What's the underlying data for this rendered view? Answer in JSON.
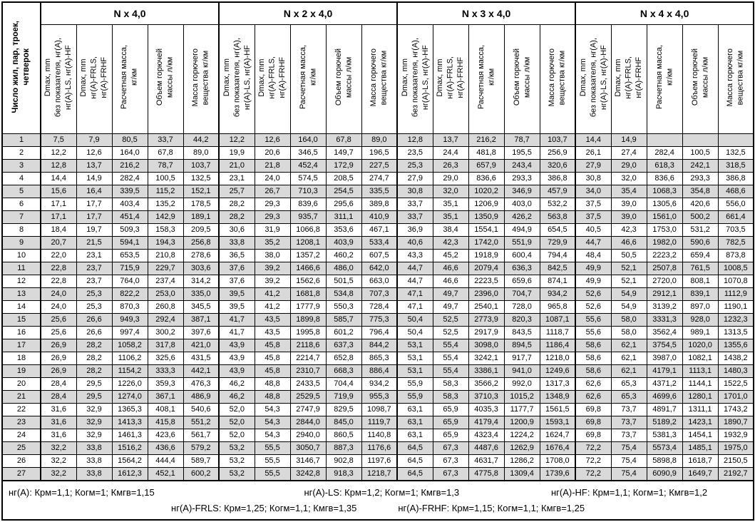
{
  "colors": {
    "row_shaded": "#d9d9d9",
    "border": "#000000",
    "background": "#ffffff"
  },
  "table": {
    "corner_header": "Число жил, пар, троек,\nчетверок",
    "groups": [
      {
        "label": "N x 4,0"
      },
      {
        "label": "N x 2 x 4,0"
      },
      {
        "label": "N x 3 x 4,0"
      },
      {
        "label": "N x 4 x 4,0"
      }
    ],
    "columns": [
      {
        "label": "Dmax, mm\nбез показателя, нг(A),\nнг(A)-LS, нг(A)-HF"
      },
      {
        "label": "Dmax, mm\nнг(A)-FRLS,\nнг(A)-FRHF"
      },
      {
        "label": "Расчетная масса,\nкг/км"
      },
      {
        "label": "Объем горючей\nмассы л/км"
      },
      {
        "label": "Масса горючего\nвещества кг/км"
      }
    ],
    "rows": [
      [
        "1",
        "7,5",
        "7,9",
        "80,5",
        "33,7",
        "44,2",
        "12,2",
        "12,6",
        "164,0",
        "67,8",
        "89,0",
        "12,8",
        "13,7",
        "216,2",
        "78,7",
        "103,7",
        "14,4",
        "14,9",
        "",
        "",
        ""
      ],
      [
        "2",
        "12,2",
        "12,6",
        "164,0",
        "67,8",
        "89,0",
        "19,9",
        "20,6",
        "346,5",
        "149,7",
        "196,5",
        "23,5",
        "24,4",
        "481,8",
        "195,5",
        "256,9",
        "26,1",
        "27,4",
        "282,4",
        "100,5",
        "132,5"
      ],
      [
        "3",
        "12,8",
        "13,7",
        "216,2",
        "78,7",
        "103,7",
        "21,0",
        "21,8",
        "452,4",
        "172,9",
        "227,5",
        "25,3",
        "26,3",
        "657,9",
        "243,4",
        "320,6",
        "27,9",
        "29,0",
        "618,3",
        "242,1",
        "318,5"
      ],
      [
        "4",
        "14,4",
        "14,9",
        "282,4",
        "100,5",
        "132,5",
        "23,1",
        "24,0",
        "574,5",
        "208,5",
        "274,7",
        "27,9",
        "29,0",
        "836,6",
        "293,3",
        "386,8",
        "30,8",
        "32,0",
        "836,6",
        "293,3",
        "386,8"
      ],
      [
        "5",
        "15,6",
        "16,4",
        "339,5",
        "115,2",
        "152,1",
        "25,7",
        "26,7",
        "710,3",
        "254,5",
        "335,5",
        "30,8",
        "32,0",
        "1020,2",
        "346,9",
        "457,9",
        "34,0",
        "35,4",
        "1068,3",
        "354,8",
        "468,6"
      ],
      [
        "6",
        "17,1",
        "17,7",
        "403,4",
        "135,2",
        "178,5",
        "28,2",
        "29,3",
        "839,6",
        "295,6",
        "389,8",
        "33,7",
        "35,1",
        "1206,9",
        "403,0",
        "532,2",
        "37,5",
        "39,0",
        "1305,6",
        "420,6",
        "556,0"
      ],
      [
        "7",
        "17,1",
        "17,7",
        "451,4",
        "142,9",
        "189,1",
        "28,2",
        "29,3",
        "935,7",
        "311,1",
        "410,9",
        "33,7",
        "35,1",
        "1350,9",
        "426,2",
        "563,8",
        "37,5",
        "39,0",
        "1561,0",
        "500,2",
        "661,4"
      ],
      [
        "8",
        "18,4",
        "19,7",
        "509,3",
        "158,3",
        "209,5",
        "30,6",
        "31,9",
        "1066,8",
        "353,6",
        "467,1",
        "36,9",
        "38,4",
        "1554,1",
        "494,9",
        "654,5",
        "40,5",
        "42,3",
        "1753,0",
        "531,2",
        "703,5"
      ],
      [
        "9",
        "20,7",
        "21,5",
        "594,1",
        "194,3",
        "256,8",
        "33,8",
        "35,2",
        "1208,1",
        "403,9",
        "533,4",
        "40,6",
        "42,3",
        "1742,0",
        "551,9",
        "729,9",
        "44,7",
        "46,6",
        "1982,0",
        "590,6",
        "782,5"
      ],
      [
        "10",
        "22,0",
        "23,1",
        "653,5",
        "210,8",
        "278,6",
        "36,5",
        "38,0",
        "1357,2",
        "460,2",
        "607,5",
        "43,3",
        "45,2",
        "1918,9",
        "600,4",
        "794,4",
        "48,4",
        "50,5",
        "2223,2",
        "659,4",
        "873,8"
      ],
      [
        "11",
        "22,8",
        "23,7",
        "715,9",
        "229,7",
        "303,6",
        "37,6",
        "39,2",
        "1466,6",
        "486,0",
        "642,0",
        "44,7",
        "46,6",
        "2079,4",
        "636,3",
        "842,5",
        "49,9",
        "52,1",
        "2507,8",
        "761,5",
        "1008,5"
      ],
      [
        "12",
        "22,8",
        "23,7",
        "764,0",
        "237,4",
        "314,2",
        "37,6",
        "39,2",
        "1562,6",
        "501,5",
        "663,0",
        "44,7",
        "46,6",
        "2223,5",
        "659,6",
        "874,1",
        "49,9",
        "52,1",
        "2720,0",
        "808,1",
        "1070,8"
      ],
      [
        "13",
        "24,0",
        "25,3",
        "822,2",
        "253,0",
        "335,0",
        "39,5",
        "41,2",
        "1681,8",
        "534,8",
        "707,3",
        "47,1",
        "49,7",
        "2396,0",
        "704,7",
        "934,2",
        "52,6",
        "54,9",
        "2912,1",
        "839,1",
        "1112,9"
      ],
      [
        "14",
        "24,0",
        "25,3",
        "870,3",
        "260,8",
        "345,5",
        "39,5",
        "41,2",
        "1777,9",
        "550,3",
        "728,4",
        "47,1",
        "49,7",
        "2540,1",
        "728,0",
        "965,8",
        "52,6",
        "54,9",
        "3139,2",
        "897,0",
        "1190,1"
      ],
      [
        "15",
        "25,6",
        "26,6",
        "949,3",
        "292,4",
        "387,1",
        "41,7",
        "43,5",
        "1899,8",
        "585,7",
        "775,3",
        "50,4",
        "52,5",
        "2773,9",
        "820,3",
        "1087,1",
        "55,6",
        "58,0",
        "3331,3",
        "928,0",
        "1232,3"
      ],
      [
        "16",
        "25,6",
        "26,6",
        "997,4",
        "300,2",
        "397,6",
        "41,7",
        "43,5",
        "1995,8",
        "601,2",
        "796,4",
        "50,4",
        "52,5",
        "2917,9",
        "843,5",
        "1118,7",
        "55,6",
        "58,0",
        "3562,4",
        "989,1",
        "1313,5"
      ],
      [
        "17",
        "26,9",
        "28,2",
        "1058,2",
        "317,8",
        "421,0",
        "43,9",
        "45,8",
        "2118,6",
        "637,3",
        "844,2",
        "53,1",
        "55,4",
        "3098,0",
        "894,5",
        "1186,4",
        "58,6",
        "62,1",
        "3754,5",
        "1020,0",
        "1355,6"
      ],
      [
        "18",
        "26,9",
        "28,2",
        "1106,2",
        "325,6",
        "431,5",
        "43,9",
        "45,8",
        "2214,7",
        "652,8",
        "865,3",
        "53,1",
        "55,4",
        "3242,1",
        "917,7",
        "1218,0",
        "58,6",
        "62,1",
        "3987,0",
        "1082,1",
        "1438,2"
      ],
      [
        "19",
        "26,9",
        "28,2",
        "1154,2",
        "333,3",
        "442,1",
        "43,9",
        "45,8",
        "2310,7",
        "668,3",
        "886,4",
        "53,1",
        "55,4",
        "3386,1",
        "941,0",
        "1249,6",
        "58,6",
        "62,1",
        "4179,1",
        "1113,1",
        "1480,3"
      ],
      [
        "20",
        "28,4",
        "29,5",
        "1226,0",
        "359,3",
        "476,3",
        "46,2",
        "48,8",
        "2433,5",
        "704,4",
        "934,2",
        "55,9",
        "58,3",
        "3566,2",
        "992,0",
        "1317,3",
        "62,6",
        "65,3",
        "4371,2",
        "1144,1",
        "1522,5"
      ],
      [
        "21",
        "28,4",
        "29,5",
        "1274,0",
        "367,1",
        "486,9",
        "46,2",
        "48,8",
        "2529,5",
        "719,9",
        "955,3",
        "55,9",
        "58,3",
        "3710,3",
        "1015,2",
        "1348,9",
        "62,6",
        "65,3",
        "4699,6",
        "1280,1",
        "1701,0"
      ],
      [
        "22",
        "31,6",
        "32,9",
        "1365,3",
        "408,1",
        "540,6",
        "52,0",
        "54,3",
        "2747,9",
        "829,5",
        "1098,7",
        "63,1",
        "65,9",
        "4035,3",
        "1177,7",
        "1561,5",
        "69,8",
        "73,7",
        "4891,7",
        "1311,1",
        "1743,2"
      ],
      [
        "23",
        "31,6",
        "32,9",
        "1413,3",
        "415,8",
        "551,2",
        "52,0",
        "54,3",
        "2844,0",
        "845,0",
        "1119,7",
        "63,1",
        "65,9",
        "4179,4",
        "1200,9",
        "1593,1",
        "69,8",
        "73,7",
        "5189,2",
        "1423,1",
        "1890,7"
      ],
      [
        "24",
        "31,6",
        "32,9",
        "1461,3",
        "423,6",
        "561,7",
        "52,0",
        "54,3",
        "2940,0",
        "860,5",
        "1140,8",
        "63,1",
        "65,9",
        "4323,4",
        "1224,2",
        "1624,7",
        "69,8",
        "73,7",
        "5381,3",
        "1454,1",
        "1932,9"
      ],
      [
        "25",
        "32,2",
        "33,8",
        "1516,2",
        "436,6",
        "579,2",
        "53,2",
        "55,5",
        "3050,7",
        "887,3",
        "1176,6",
        "64,5",
        "67,3",
        "4487,6",
        "1262,9",
        "1676,4",
        "72,2",
        "75,4",
        "5573,4",
        "1485,1",
        "1975,0"
      ],
      [
        "26",
        "32,2",
        "33,8",
        "1564,2",
        "444,4",
        "589,7",
        "53,2",
        "55,5",
        "3146,7",
        "902,8",
        "1197,6",
        "64,5",
        "67,3",
        "4631,7",
        "1286,2",
        "1708,0",
        "72,2",
        "75,4",
        "5898,8",
        "1618,7",
        "2150,5"
      ],
      [
        "27",
        "32,2",
        "33,8",
        "1612,3",
        "452,1",
        "600,2",
        "53,2",
        "55,5",
        "3242,8",
        "918,3",
        "1218,7",
        "64,5",
        "67,3",
        "4775,8",
        "1309,4",
        "1739,6",
        "72,2",
        "75,4",
        "6090,9",
        "1649,7",
        "2192,7"
      ]
    ]
  },
  "footer": {
    "line1": [
      "нг(A): Крм=1,1;  Когм=1;  Кмгв=1,15",
      "нг(A)-LS: Крм=1,2;  Когм=1;  Кмгв=1,3",
      "нг(A)-HF: Крм=1,1;  Когм=1;  Кмгв=1,2"
    ],
    "line2": [
      "нг(A)-FRLS: Крм=1,25;  Когм=1,1;  Кмгв=1,35",
      "нг(A)-FRHF: Крм=1,15;  Когм=1,1;  Кмгв=1,25"
    ]
  }
}
